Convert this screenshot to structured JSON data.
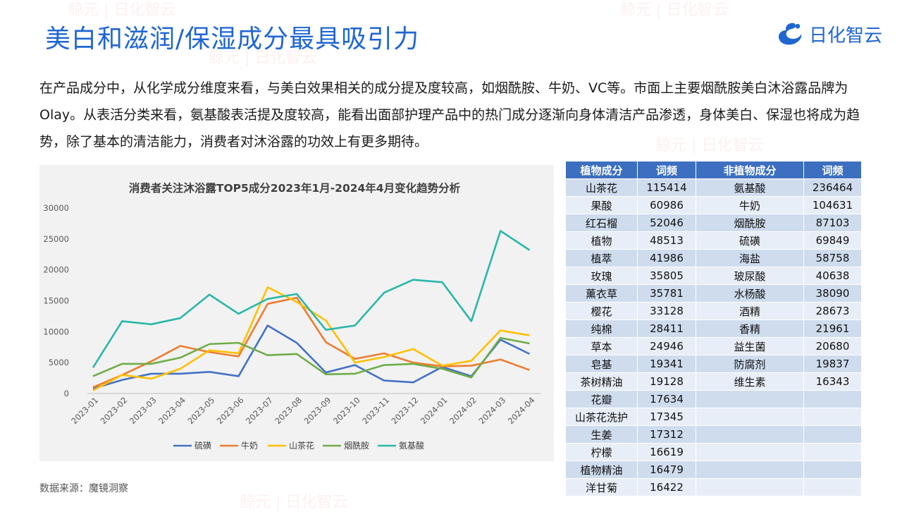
{
  "page": {
    "title": "美白和滋润/保湿成分最具吸引力",
    "logo_text": "日化智云",
    "intro": "在产品成分中，从化学成分维度来看，与美白效果相关的成分提及度较高，如烟酰胺、牛奶、VC等。市面上主要烟酰胺美白沐浴露品牌为Olay。从表活分类来看，氨基酸表活提及度较高，能看出面部护理产品中的热门成分逐渐向身体清洁产品渗透，身体美白、保湿也将成为趋势，除了基本的清洁能力，消费者对沐浴露的功效上有更多期待。",
    "source": "数据来源：魔镜洞察",
    "watermark": "鲸元 | 日化智云"
  },
  "colors": {
    "accent": "#1f66d1",
    "table_header": "#3d6fc0"
  },
  "chart_data": {
    "type": "line",
    "title": "消费者关注沐浴露TOP5成分2023年1月-2024年4月变化趋势分析",
    "xlabel": "",
    "ylabel": "",
    "ylim": [
      0,
      30000
    ],
    "yticks": [
      0,
      5000,
      10000,
      15000,
      20000,
      25000,
      30000
    ],
    "grid": false,
    "legend_position": "bottom",
    "categories": [
      "2023-01",
      "2023-02",
      "2023-03",
      "2023-04",
      "2023-05",
      "2023-06",
      "2023-07",
      "2023-08",
      "2023-09",
      "2023-10",
      "2023-11",
      "2023-12",
      "2024-01",
      "2024-02",
      "2024-03",
      "2024-04"
    ],
    "series": [
      {
        "name": "硫磺",
        "color": "#4472c4",
        "values": [
          800,
          2200,
          3200,
          3200,
          3500,
          2800,
          11000,
          8200,
          3400,
          4600,
          2100,
          1800,
          4300,
          2800,
          8700,
          6400
        ]
      },
      {
        "name": "牛奶",
        "color": "#ed7d31",
        "values": [
          1000,
          3000,
          5200,
          7700,
          6700,
          6000,
          14500,
          15500,
          8300,
          5600,
          6500,
          5000,
          4400,
          4500,
          5500,
          3800
        ]
      },
      {
        "name": "山茶花",
        "color": "#ffc000",
        "values": [
          500,
          3000,
          2400,
          4000,
          7000,
          6500,
          17200,
          14800,
          11800,
          5000,
          5900,
          7200,
          4500,
          5300,
          10200,
          9400
        ]
      },
      {
        "name": "烟酰胺",
        "color": "#70ad47",
        "values": [
          2800,
          4800,
          4800,
          5800,
          8000,
          8200,
          6200,
          6400,
          3100,
          3200,
          4600,
          4800,
          4000,
          2600,
          9000,
          8100
        ]
      },
      {
        "name": "氨基酸",
        "color": "#2ab7a9",
        "values": [
          4200,
          11700,
          11200,
          12200,
          16000,
          12900,
          15300,
          16100,
          10300,
          11000,
          16300,
          18400,
          18000,
          11700,
          26300,
          23200
        ]
      }
    ]
  },
  "table": {
    "headers": [
      "植物成分",
      "词频",
      "非植物成分",
      "词频"
    ],
    "rows": [
      [
        "山茶花",
        "115414",
        "氨基酸",
        "236464"
      ],
      [
        "果酸",
        "60986",
        "牛奶",
        "104631"
      ],
      [
        "红石榴",
        "52046",
        "烟酰胺",
        "87103"
      ],
      [
        "植物",
        "48513",
        "硫磺",
        "69849"
      ],
      [
        "植萃",
        "41986",
        "海盐",
        "58758"
      ],
      [
        "玫瑰",
        "35805",
        "玻尿酸",
        "40638"
      ],
      [
        "薰衣草",
        "35781",
        "水杨酸",
        "38090"
      ],
      [
        "樱花",
        "33128",
        "酒精",
        "28673"
      ],
      [
        "纯棉",
        "28411",
        "香精",
        "21961"
      ],
      [
        "草本",
        "24946",
        "益生菌",
        "20680"
      ],
      [
        "皂基",
        "19341",
        "防腐剂",
        "19837"
      ],
      [
        "茶树精油",
        "19128",
        "维生素",
        "16343"
      ],
      [
        "花瓣",
        "17634",
        "",
        ""
      ],
      [
        "山茶花洗护",
        "17345",
        "",
        ""
      ],
      [
        "生姜",
        "17312",
        "",
        ""
      ],
      [
        "柠檬",
        "16619",
        "",
        ""
      ],
      [
        "植物精油",
        "16479",
        "",
        ""
      ],
      [
        "洋甘菊",
        "16422",
        "",
        ""
      ]
    ]
  }
}
